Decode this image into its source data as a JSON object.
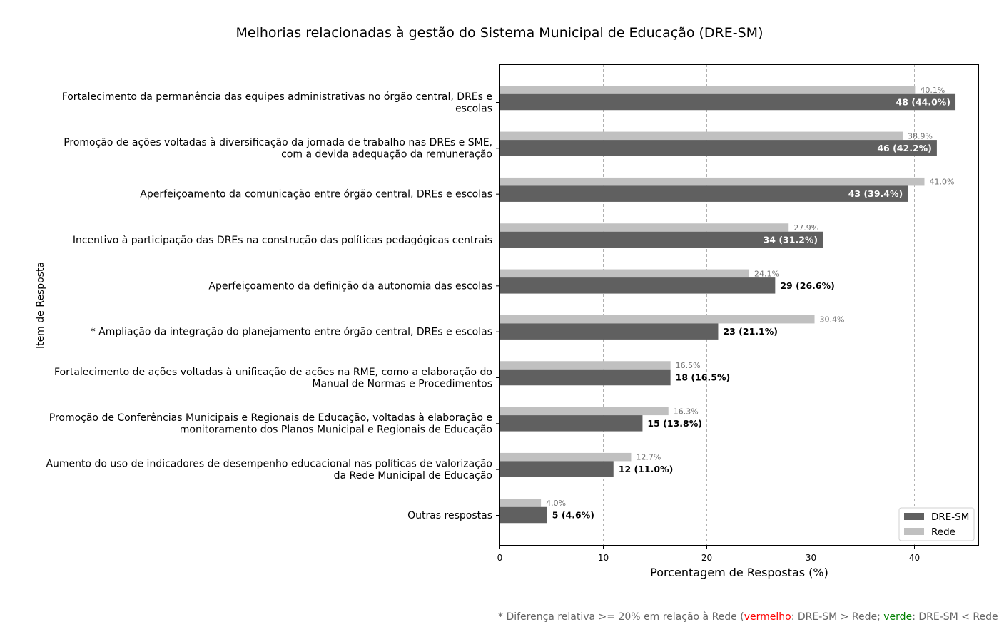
{
  "chart_data": {
    "type": "bar",
    "orientation": "horizontal",
    "title": "Melhorias relacionadas à gestão do Sistema Municipal de Educação (DRE-SM)",
    "xlabel": "Porcentagem de Respostas (%)",
    "ylabel": "Item de Resposta",
    "xlim": [
      0,
      46.2
    ],
    "xticks": [
      0,
      10,
      20,
      30,
      40
    ],
    "grid": "x dashed",
    "legend_position": "bottom-right",
    "categories": [
      {
        "lines": [
          "Fortalecimento da permanência das equipes administrativas no órgão central, DREs e",
          "escolas"
        ],
        "highlight": "none"
      },
      {
        "lines": [
          "Promoção de ações voltadas à diversificação da jornada de trabalho nas DREs e SME,",
          "com a devida adequação da remuneração"
        ],
        "highlight": "none"
      },
      {
        "lines": [
          "Aperfeiçoamento da comunicação entre órgão central, DREs e escolas"
        ],
        "highlight": "none"
      },
      {
        "lines": [
          "Incentivo à participação das DREs na construção das políticas pedagógicas centrais"
        ],
        "highlight": "none"
      },
      {
        "lines": [
          "Aperfeiçoamento da definição da autonomia das escolas"
        ],
        "highlight": "none"
      },
      {
        "lines": [
          "* Ampliação da integração do planejamento entre órgão central, DREs e escolas"
        ],
        "highlight": "green"
      },
      {
        "lines": [
          "Fortalecimento de ações voltadas à unificação de ações na RME, como a elaboração do",
          "Manual de Normas e Procedimentos"
        ],
        "highlight": "none"
      },
      {
        "lines": [
          "Promoção de Conferências Municipais e Regionais de Educação, voltadas à elaboração e",
          "monitoramento dos Planos Municipal e Regionais de Educação"
        ],
        "highlight": "none"
      },
      {
        "lines": [
          "Aumento do uso de indicadores de desempenho educacional nas políticas de valorização",
          "da Rede Municipal de Educação"
        ],
        "highlight": "none"
      },
      {
        "lines": [
          "Outras respostas"
        ],
        "highlight": "none"
      }
    ],
    "series": [
      {
        "name": "DRE-SM",
        "color": "#606060",
        "counts": [
          48,
          46,
          43,
          34,
          29,
          23,
          18,
          15,
          12,
          5
        ],
        "values": [
          44.0,
          42.2,
          39.4,
          31.2,
          26.6,
          21.1,
          16.5,
          13.8,
          11.0,
          4.6
        ],
        "labels": [
          "48 (44.0%)",
          "46 (42.2%)",
          "43 (39.4%)",
          "34 (31.2%)",
          "29 (26.6%)",
          "23 (21.1%)",
          "18 (16.5%)",
          "15 (13.8%)",
          "12 (11.0%)",
          "5 (4.6%)"
        ]
      },
      {
        "name": "Rede",
        "color": "#c0c0c0",
        "values": [
          40.1,
          38.9,
          41.0,
          27.9,
          24.1,
          30.4,
          16.5,
          16.3,
          12.7,
          4.0
        ],
        "labels": [
          "40.1%",
          "38.9%",
          "41.0%",
          "27.9%",
          "24.1%",
          "30.4%",
          "16.5%",
          "16.3%",
          "12.7%",
          "4.0%"
        ]
      }
    ]
  },
  "footnote": {
    "prefix": "* Diferença relativa >= 20% em relação à Rede (",
    "red_word": "vermelho",
    "middle": ": DRE-SM > Rede; ",
    "green_word": "verde",
    "suffix": ": DRE-SM < Rede)"
  },
  "colors": {
    "red_highlight": "#ff0000",
    "green_highlight": "#008000",
    "footnote_text": "#666666"
  }
}
